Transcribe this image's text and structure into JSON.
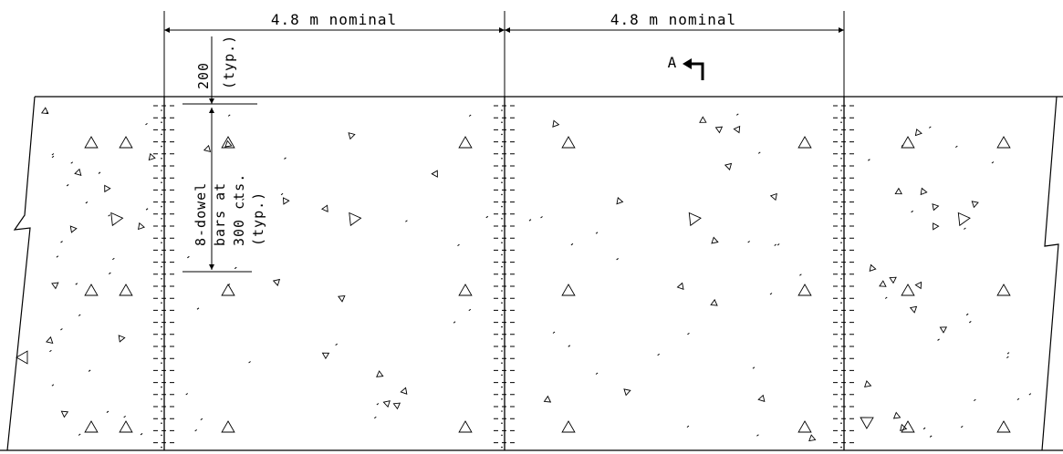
{
  "drawing": {
    "panel_width_label_left": "4.8 m nominal",
    "panel_width_label_right": "4.8 m nominal",
    "section_marker": "A",
    "edge_offset_label": "200",
    "typical_note": "(typ.)",
    "dowel_note_lines": [
      "8-dowel",
      "bars at",
      "300 cts.",
      "(typ.)"
    ]
  }
}
